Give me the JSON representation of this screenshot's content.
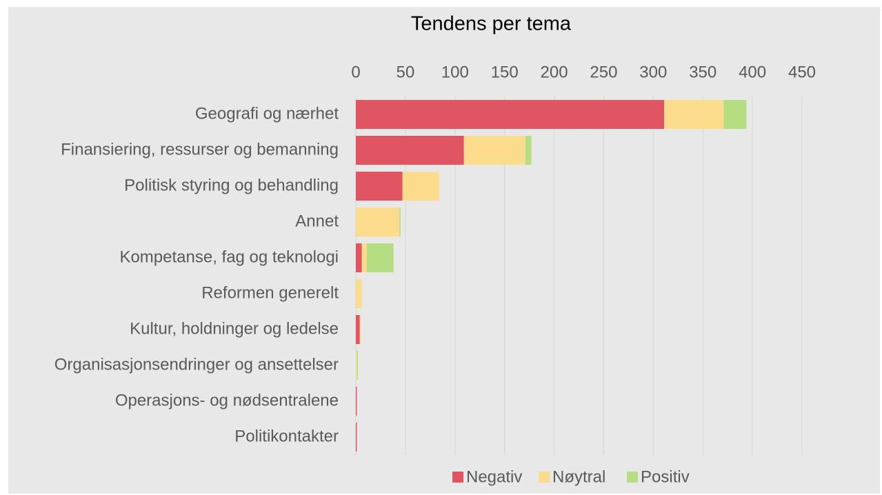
{
  "chart_data": {
    "type": "bar",
    "orientation": "horizontal",
    "stacked": true,
    "title": "Tendens per tema",
    "categories": [
      "Geografi og nærhet",
      "Finansiering, ressurser og bemanning",
      "Politisk styring og behandling",
      "Annet",
      "Kompetanse, fag og teknologi",
      "Reformen generelt",
      "Kultur, holdninger og ledelse",
      "Organisasjonsendringer og ansettelser",
      "Operasjons- og nødsentralene",
      "Politikontakter"
    ],
    "series": [
      {
        "name": "Negativ",
        "color": "#e05561",
        "values": [
          311,
          109,
          47,
          0,
          6,
          0,
          4,
          0,
          1,
          1
        ]
      },
      {
        "name": "Nøytral",
        "color": "#fadc8c",
        "values": [
          60,
          62,
          37,
          44,
          5,
          6,
          1,
          1,
          0,
          0
        ]
      },
      {
        "name": "Positiv",
        "color": "#b5de82",
        "values": [
          23,
          6,
          0,
          1,
          27,
          0,
          0,
          1,
          0,
          0
        ]
      }
    ],
    "xlim": [
      0,
      450
    ],
    "xticks": [
      0,
      50,
      100,
      150,
      200,
      250,
      300,
      350,
      400,
      450
    ],
    "grid": true,
    "legend": "bottom"
  }
}
